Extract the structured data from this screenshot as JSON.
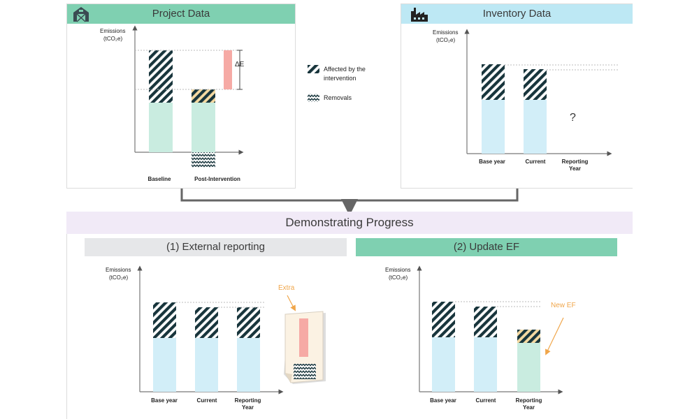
{
  "colors": {
    "green_header": "#7fd0b1",
    "blue_header": "#bde8f4",
    "purple_band": "#f1eaf7",
    "gray_header": "#e6e7e9",
    "bar_green": "#c9ece0",
    "bar_blue": "#d2eef8",
    "hatch_dark": "#18353c",
    "pink": "#f6aaa5",
    "tan": "#f4d9a1",
    "annotation_orange": "#f0a64a"
  },
  "project_panel": {
    "title": "Project Data",
    "icon": "barn-icon",
    "y_axis_label_1": "Emissions",
    "y_axis_label_2": "(tCO₂e)",
    "x_labels": [
      "Baseline",
      "Post-Intervention"
    ],
    "delta_label": "ΔE"
  },
  "inventory_panel": {
    "title": "Inventory Data",
    "icon": "factory-icon",
    "y_axis_label_1": "Emissions",
    "y_axis_label_2": "(tCO₂e)",
    "x_labels": [
      "Base year",
      "Current",
      "Reporting Year"
    ],
    "unknown_marker": "?"
  },
  "legend": {
    "affected_label": "Affected by the intervention",
    "removals_label": "Removals"
  },
  "progress_band": {
    "title": "Demonstrating Progress"
  },
  "external_reporting": {
    "title": "(1) External reporting",
    "y_axis_label_1": "Emissions",
    "y_axis_label_2": "(tCO₂e)",
    "x_labels": [
      "Base year",
      "Current",
      "Reporting Year"
    ],
    "annotation": "Extra"
  },
  "update_ef": {
    "title": "(2) Update EF",
    "y_axis_label_1": "Emissions",
    "y_axis_label_2": "(tCO₂e)",
    "x_labels": [
      "Base year",
      "Current",
      "Reporting Year"
    ],
    "annotation": "New EF"
  }
}
